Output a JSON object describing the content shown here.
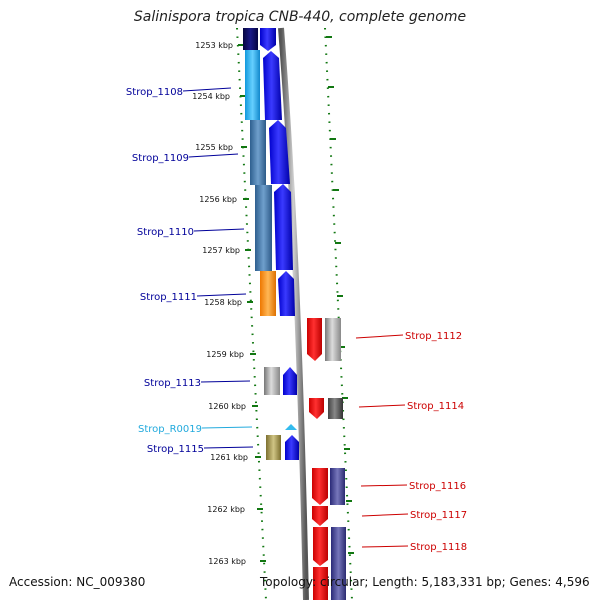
{
  "title": "Salinispora tropica CNB-440, complete genome",
  "footer": {
    "accession": "Accession: NC_009380",
    "topology": "Topology: circular; Length: 5,183,331 bp; Genes: 4,596"
  },
  "colors": {
    "forward_cds": "#1111ee",
    "reverse_cds": "#ee1111",
    "dark_navy": "#0d0d66",
    "light_blue": "#33bbee",
    "steel_blue": "#4f86b7",
    "orange": "#ff9922",
    "gray": "#9a9a9a",
    "olive": "#a89a55",
    "slate_purple": "#4a4a99",
    "rna": "#33bbee",
    "tick_green": "#117711",
    "label_forward": "#000099",
    "label_reverse": "#cc0000",
    "label_rna": "#22aadd"
  },
  "scale_ticks": [
    {
      "label": "1253 kbp"
    },
    {
      "label": "1254 kbp"
    },
    {
      "label": "1255 kbp"
    },
    {
      "label": "1256 kbp"
    },
    {
      "label": "1257 kbp"
    },
    {
      "label": "1258 kbp"
    },
    {
      "label": "1259 kbp"
    },
    {
      "label": "1260 kbp"
    },
    {
      "label": "1261 kbp"
    },
    {
      "label": "1262 kbp"
    },
    {
      "label": "1263 kbp"
    }
  ],
  "gene_labels": [
    {
      "text": "Strop_1108",
      "strand": "forward"
    },
    {
      "text": "Strop_1109",
      "strand": "forward"
    },
    {
      "text": "Strop_1110",
      "strand": "forward"
    },
    {
      "text": "Strop_1111",
      "strand": "forward"
    },
    {
      "text": "Strop_1112",
      "strand": "reverse"
    },
    {
      "text": "Strop_1113",
      "strand": "forward"
    },
    {
      "text": "Strop_1114",
      "strand": "reverse"
    },
    {
      "text": "Strop_R0019",
      "strand": "rna"
    },
    {
      "text": "Strop_1115",
      "strand": "forward"
    },
    {
      "text": "Strop_1116",
      "strand": "reverse"
    },
    {
      "text": "Strop_1117",
      "strand": "reverse"
    },
    {
      "text": "Strop_1118",
      "strand": "reverse"
    }
  ]
}
